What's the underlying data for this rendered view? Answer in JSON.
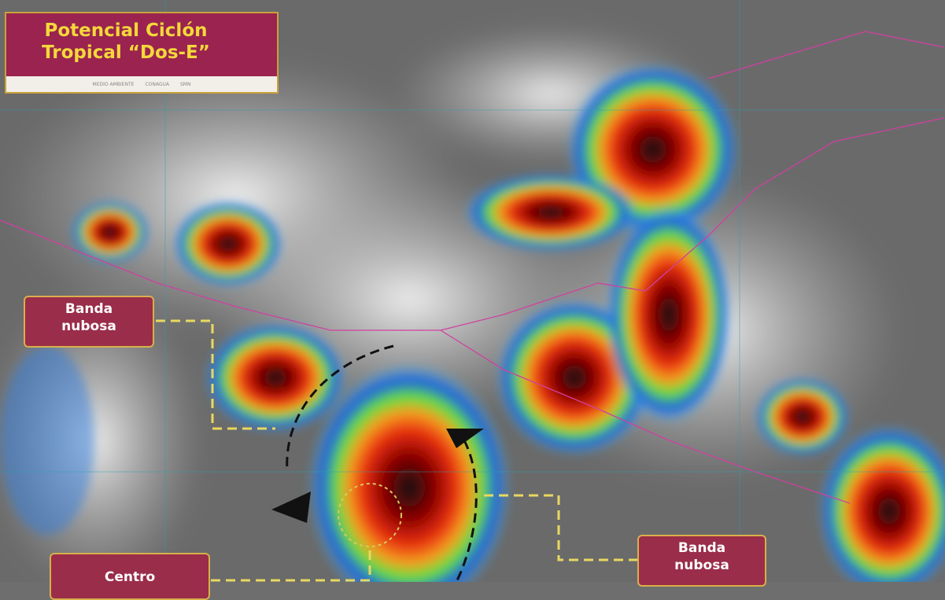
{
  "title": {
    "line1": "Potencial Ciclón",
    "line2": "Tropical “Dos-E”"
  },
  "logos": [
    "MEDIO AMBIENTE",
    "CONAGUA",
    "SMN"
  ],
  "labels": {
    "banda_left": {
      "line1": "Banda",
      "line2": "nubosa"
    },
    "banda_right": {
      "line1": "Banda",
      "line2": "nubosa"
    },
    "centro": {
      "line1": "Centro"
    }
  },
  "colors": {
    "label_bg": "#9a2d4a",
    "label_border": "#d8b04a",
    "title_text": "#f4d83a",
    "border_lines": "#d040a0"
  }
}
